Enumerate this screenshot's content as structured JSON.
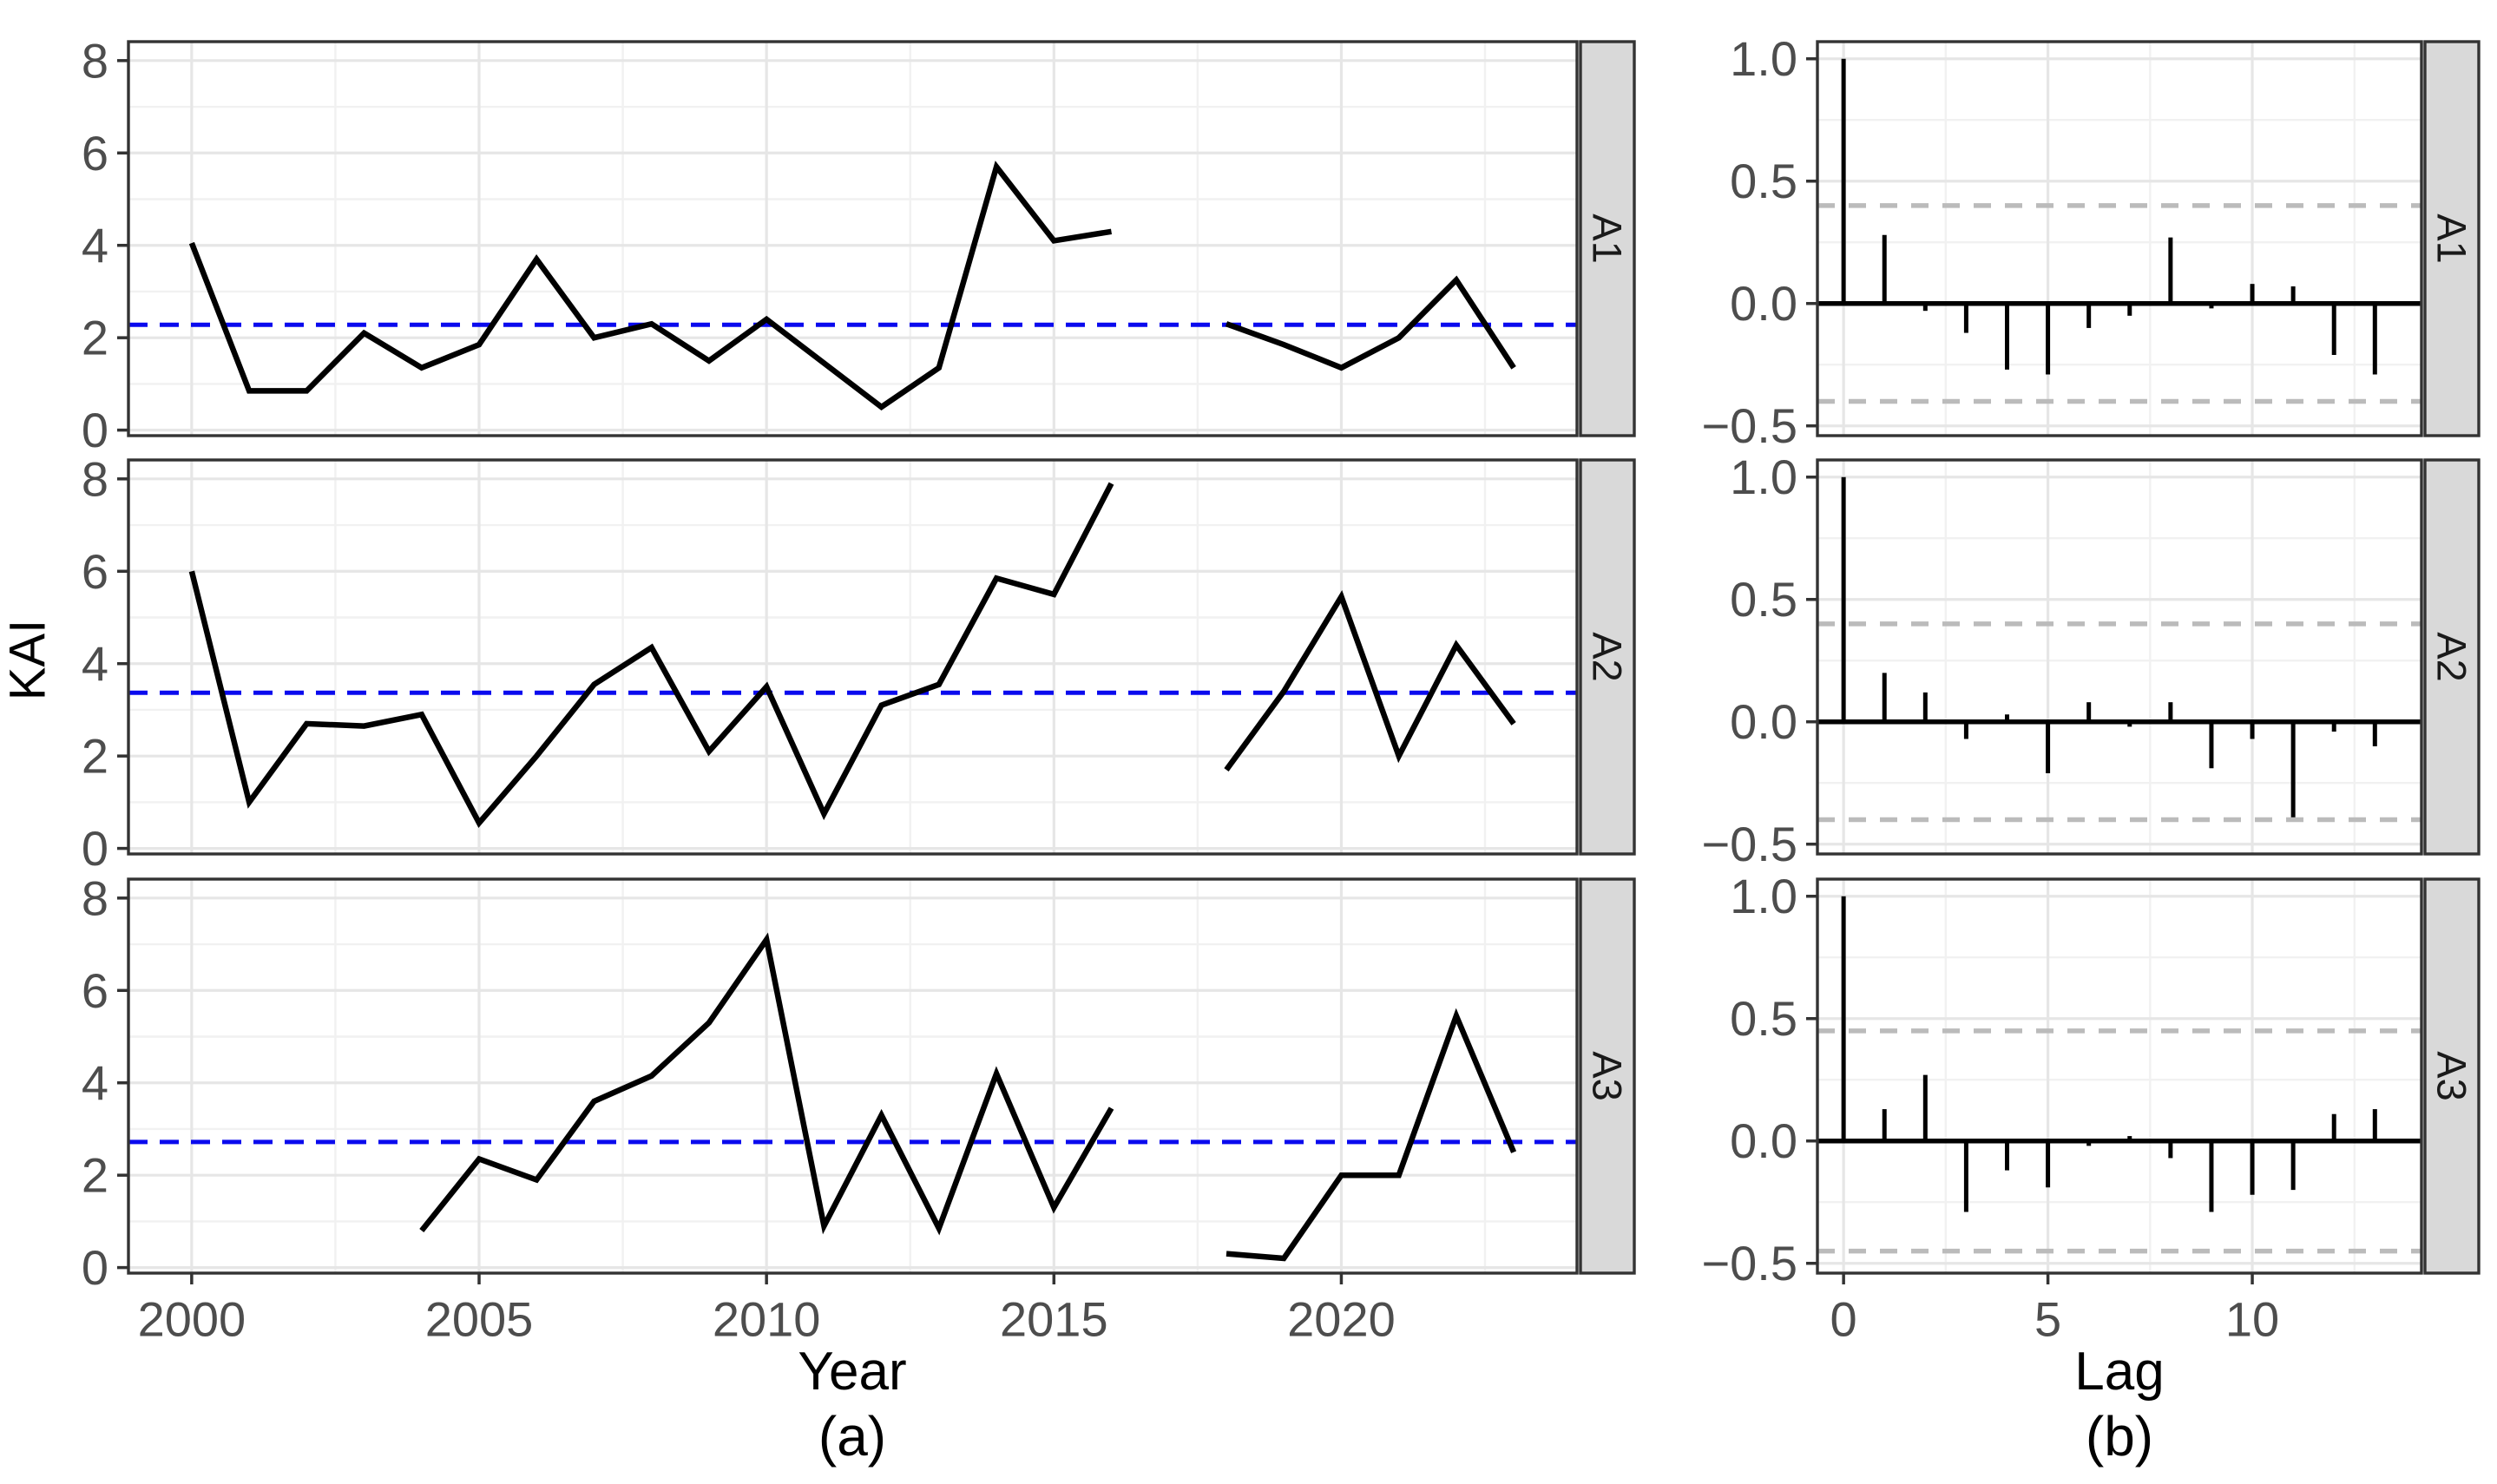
{
  "figure": {
    "background": "#ffffff"
  },
  "chart_data": [
    {
      "type": "line",
      "caption": "(a)",
      "xlabel": "Year",
      "ylabel": "KAI",
      "x_ticks": [
        2000,
        2005,
        2010,
        2015,
        2020
      ],
      "x_tick_labels": [
        "2000",
        "2005",
        "2010",
        "2015",
        "2020"
      ],
      "x_minor": [
        2002.5,
        2007.5,
        2012.5,
        2017.5,
        2022.5
      ],
      "y_ticks": [
        0,
        2,
        4,
        6,
        8
      ],
      "y_tick_labels": [
        "0",
        "2",
        "4",
        "6",
        "8"
      ],
      "y_minor": [
        1,
        3,
        5,
        7
      ],
      "x_domain": [
        1998.9,
        2024.1
      ],
      "y_domain": [
        -0.12,
        8.41
      ],
      "grid": "on",
      "legend_position": "none",
      "series_color": "#000000",
      "mean_line_color": "#0A0AEE",
      "facets": [
        {
          "label": "A1",
          "mean": 2.28,
          "segments": [
            {
              "x": [
                2000,
                2001,
                2002,
                2003,
                2004,
                2005,
                2006,
                2007,
                2008,
                2009,
                2010,
                2011,
                2012,
                2013,
                2014,
                2015,
                2016
              ],
              "y": [
                4.05,
                0.85,
                0.85,
                2.1,
                1.35,
                1.85,
                3.7,
                2.0,
                2.3,
                1.5,
                2.4,
                1.45,
                0.5,
                1.35,
                5.7,
                4.1,
                4.3
              ]
            },
            {
              "x": [
                2018,
                2019,
                2020,
                2021,
                2022,
                2023
              ],
              "y": [
                2.3,
                1.85,
                1.35,
                2.0,
                3.25,
                1.35
              ]
            }
          ]
        },
        {
          "label": "A2",
          "mean": 3.37,
          "segments": [
            {
              "x": [
                2000,
                2001,
                2002,
                2003,
                2004,
                2005,
                2006,
                2007,
                2008,
                2009,
                2010,
                2011,
                2012,
                2013,
                2014,
                2015,
                2016
              ],
              "y": [
                6.0,
                1.0,
                2.7,
                2.65,
                2.9,
                0.55,
                2.0,
                3.55,
                4.35,
                2.1,
                3.5,
                0.75,
                3.1,
                3.55,
                5.85,
                5.5,
                7.9
              ]
            },
            {
              "x": [
                2018,
                2019,
                2020,
                2021,
                2022,
                2023
              ],
              "y": [
                1.7,
                3.4,
                5.45,
                2.0,
                4.4,
                2.7
              ]
            }
          ]
        },
        {
          "label": "A3",
          "mean": 2.72,
          "segments": [
            {
              "x": [
                2004,
                2005,
                2006,
                2007,
                2008,
                2009,
                2010,
                2011,
                2012,
                2013,
                2014,
                2015,
                2016
              ],
              "y": [
                0.8,
                2.35,
                1.9,
                3.6,
                4.15,
                5.3,
                7.1,
                0.9,
                3.3,
                0.85,
                4.2,
                1.3,
                3.45
              ]
            },
            {
              "x": [
                2018,
                2019,
                2020,
                2021,
                2022,
                2023
              ],
              "y": [
                0.3,
                0.2,
                2.0,
                2.0,
                5.45,
                2.5
              ]
            }
          ]
        }
      ]
    },
    {
      "type": "bar",
      "caption": "(b)",
      "xlabel": "Lag",
      "ylabel": "",
      "x_ticks": [
        0,
        5,
        10
      ],
      "x_tick_labels": [
        "0",
        "5",
        "10"
      ],
      "x_minor": [
        2.5,
        7.5,
        12.5
      ],
      "y_ticks": [
        1.0,
        0.5,
        0.0,
        -0.5
      ],
      "y_tick_labels": [
        "1.0",
        "0.5",
        "0.0",
        "−0.5"
      ],
      "y_minor": [
        0.75,
        0.25,
        -0.25
      ],
      "x_domain": [
        -0.64,
        14.14
      ],
      "y_domain": [
        -0.54,
        1.07
      ],
      "grid": "on",
      "ci_line_color": "#BBBBBB",
      "bar_color": "#000000",
      "facets": [
        {
          "label": "A1",
          "ci": 0.4,
          "lags": [
            0,
            1,
            2,
            3,
            4,
            5,
            6,
            7,
            8,
            9,
            10,
            11,
            12,
            13
          ],
          "values": [
            1.0,
            0.28,
            -0.03,
            -0.12,
            -0.27,
            -0.29,
            -0.1,
            -0.05,
            0.27,
            -0.02,
            0.08,
            0.07,
            -0.21,
            -0.29
          ]
        },
        {
          "label": "A2",
          "ci": 0.4,
          "lags": [
            0,
            1,
            2,
            3,
            4,
            5,
            6,
            7,
            8,
            9,
            10,
            11,
            12,
            13
          ],
          "values": [
            1.0,
            0.2,
            0.12,
            -0.07,
            0.03,
            -0.21,
            0.08,
            -0.02,
            0.08,
            -0.19,
            -0.07,
            -0.39,
            -0.04,
            -0.1
          ]
        },
        {
          "label": "A3",
          "ci": 0.45,
          "lags": [
            0,
            1,
            2,
            3,
            4,
            5,
            6,
            7,
            8,
            9,
            10,
            11,
            12,
            13
          ],
          "values": [
            1.0,
            0.13,
            0.27,
            -0.29,
            -0.12,
            -0.19,
            -0.02,
            0.02,
            -0.07,
            -0.29,
            -0.22,
            -0.2,
            0.11,
            0.13
          ]
        }
      ]
    }
  ]
}
